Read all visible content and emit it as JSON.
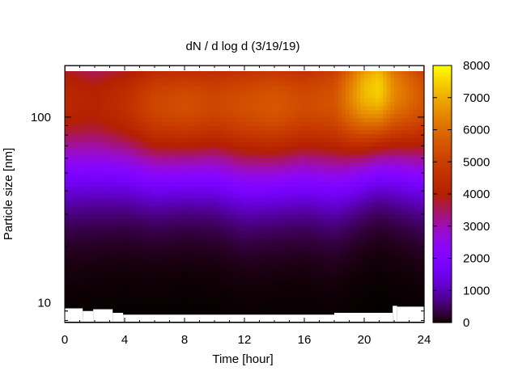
{
  "chart_data": {
    "type": "heatmap",
    "title": "dN / d log d (3/19/19)",
    "xlabel": "Time [hour]",
    "ylabel": "Particle size [nm]",
    "xlim": [
      0,
      24
    ],
    "ylim": [
      7.8,
      190
    ],
    "y_scale": "log",
    "x_ticks": [
      0,
      4,
      8,
      12,
      16,
      20,
      24
    ],
    "y_ticks": [
      10,
      100
    ],
    "colorbar": {
      "range": [
        0,
        8000
      ],
      "ticks": [
        0,
        1000,
        2000,
        3000,
        4000,
        5000,
        6000,
        7000,
        8000
      ],
      "colormap": "black-purple-magenta-red-orange-yellow"
    },
    "grid": false,
    "time_hours": [
      0,
      2,
      4,
      6,
      8,
      10,
      12,
      14,
      16,
      18,
      20,
      21,
      22,
      24
    ],
    "peak_size_nm": [
      125,
      120,
      120,
      118,
      118,
      120,
      118,
      118,
      120,
      125,
      140,
      145,
      140,
      130
    ],
    "peak_concentration": [
      4300,
      4100,
      4500,
      5200,
      5400,
      5200,
      5400,
      5600,
      5300,
      5500,
      7200,
      7500,
      6500,
      5500
    ],
    "band_spread_decades": [
      0.32,
      0.31,
      0.3,
      0.3,
      0.29,
      0.3,
      0.32,
      0.31,
      0.31,
      0.33,
      0.3,
      0.29,
      0.3,
      0.32
    ]
  }
}
